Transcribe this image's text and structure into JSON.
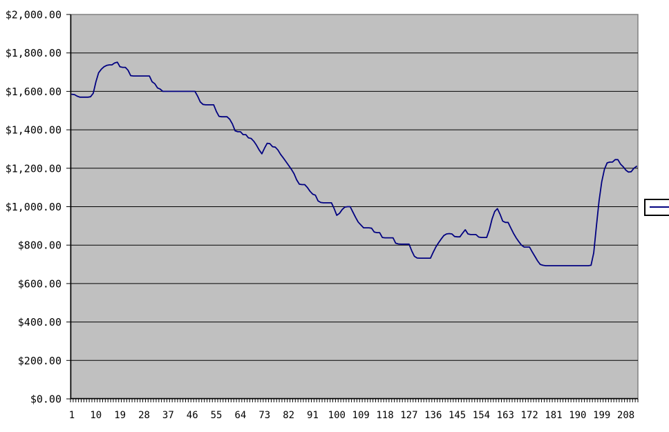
{
  "chart": {
    "background_color": "#FFFFFF"
  },
  "chart_data": {
    "type": "line",
    "title": "",
    "xlabel": "",
    "ylabel": "",
    "ylim": [
      0,
      2000
    ],
    "y_tick_step": 200,
    "y_ticks": [
      {
        "value": 2000,
        "label": "$2,000.00"
      },
      {
        "value": 1800,
        "label": "$1,800.00"
      },
      {
        "value": 1600,
        "label": "$1,600.00"
      },
      {
        "value": 1400,
        "label": "$1,400.00"
      },
      {
        "value": 1200,
        "label": "$1,200.00"
      },
      {
        "value": 1000,
        "label": "$1,000.00"
      },
      {
        "value": 800,
        "label": "$800.00"
      },
      {
        "value": 600,
        "label": "$600.00"
      },
      {
        "value": 400,
        "label": "$400.00"
      },
      {
        "value": 200,
        "label": "$200.00"
      },
      {
        "value": 0,
        "label": "$0.00"
      }
    ],
    "x_tick_start": 1,
    "x_tick_interval": 9,
    "x_tick_labels": [
      "1",
      "10",
      "19",
      "28",
      "37",
      "46",
      "55",
      "64",
      "73",
      "82",
      "91",
      "100",
      "109",
      "118",
      "127",
      "136",
      "145",
      "154",
      "163",
      "172",
      "181",
      "190",
      "199",
      "208"
    ],
    "n_points": 212,
    "grid": "horizontal-only",
    "plot_bg_color": "#C0C0C0",
    "plot_border_color": "#808080",
    "gridline_color": "#000000",
    "axis_color": "#000000",
    "legend": {
      "position": "right",
      "series_label": "",
      "sample_color": "#000080"
    },
    "series": [
      {
        "name": "",
        "color": "#000080",
        "values": [
          1585,
          1583,
          1575,
          1570,
          1570,
          1570,
          1570,
          1572,
          1590,
          1650,
          1697,
          1715,
          1728,
          1735,
          1738,
          1738,
          1748,
          1752,
          1728,
          1725,
          1725,
          1710,
          1682,
          1680,
          1680,
          1680,
          1680,
          1680,
          1680,
          1680,
          1650,
          1640,
          1618,
          1612,
          1600,
          1600,
          1600,
          1600,
          1600,
          1600,
          1600,
          1600,
          1600,
          1600,
          1600,
          1600,
          1600,
          1575,
          1545,
          1532,
          1530,
          1530,
          1530,
          1530,
          1495,
          1470,
          1468,
          1468,
          1468,
          1455,
          1430,
          1395,
          1390,
          1390,
          1375,
          1375,
          1358,
          1355,
          1340,
          1320,
          1295,
          1275,
          1305,
          1330,
          1328,
          1312,
          1310,
          1295,
          1272,
          1254,
          1235,
          1215,
          1195,
          1172,
          1140,
          1117,
          1115,
          1115,
          1100,
          1080,
          1065,
          1060,
          1030,
          1022,
          1020,
          1020,
          1020,
          1020,
          990,
          955,
          965,
          985,
          998,
          1000,
          1000,
          972,
          945,
          920,
          905,
          890,
          890,
          890,
          888,
          868,
          865,
          865,
          840,
          838,
          838,
          838,
          838,
          810,
          806,
          805,
          805,
          805,
          805,
          770,
          742,
          733,
          732,
          732,
          732,
          732,
          732,
          762,
          790,
          812,
          832,
          850,
          858,
          860,
          858,
          845,
          843,
          843,
          862,
          880,
          858,
          855,
          855,
          855,
          842,
          840,
          840,
          840,
          880,
          935,
          975,
          990,
          960,
          925,
          918,
          918,
          890,
          862,
          838,
          818,
          800,
          790,
          790,
          790,
          765,
          742,
          718,
          700,
          695,
          693,
          693,
          693,
          693,
          693,
          693,
          693,
          693,
          693,
          693,
          693,
          693,
          693,
          693,
          693,
          693,
          693,
          695,
          760,
          900,
          1030,
          1130,
          1195,
          1228,
          1232,
          1232,
          1245,
          1245,
          1222,
          1208,
          1190,
          1180,
          1182,
          1200,
          1210
        ]
      }
    ]
  }
}
